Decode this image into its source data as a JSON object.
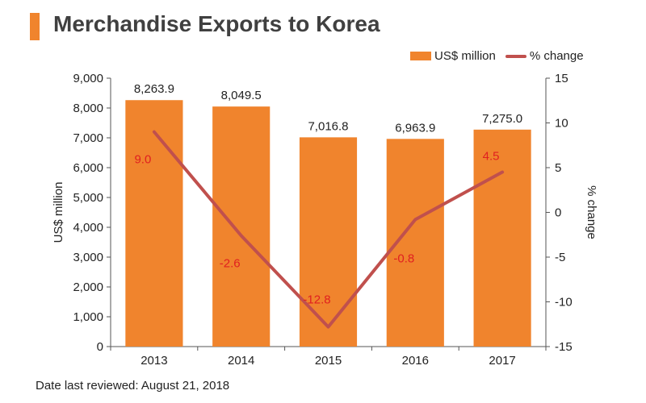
{
  "title": "Merchandise Exports to Korea",
  "footnote": "Date last reviewed: August 21, 2018",
  "legend": {
    "bar_label": "US$ million",
    "line_label": "% change"
  },
  "colors": {
    "bar": "#f0842d",
    "line": "#c0504d",
    "pct_label": "#e02020",
    "accent": "#f0842d"
  },
  "chart_data": {
    "type": "bar",
    "categories": [
      "2013",
      "2014",
      "2015",
      "2016",
      "2017"
    ],
    "series": [
      {
        "name": "US$ million",
        "type": "bar",
        "axis": "left",
        "values": [
          8263.9,
          8049.5,
          7016.8,
          6963.9,
          7275.0
        ],
        "labels": [
          "8,263.9",
          "8,049.5",
          "7,016.8",
          "6,963.9",
          "7,275.0"
        ]
      },
      {
        "name": "% change",
        "type": "line",
        "axis": "right",
        "values": [
          9.0,
          -2.6,
          -12.8,
          -0.8,
          4.5
        ],
        "labels": [
          "9.0",
          "-2.6",
          "-12.8",
          "-0.8",
          "4.5"
        ]
      }
    ],
    "ylabel_left": "US$ million",
    "ylabel_right": "% change",
    "ylim_left": [
      0,
      9000
    ],
    "ylim_right": [
      -15,
      15
    ],
    "yticks_left": [
      "0",
      "1,000",
      "2,000",
      "3,000",
      "4,000",
      "5,000",
      "6,000",
      "7,000",
      "8,000",
      "9,000"
    ],
    "yticks_right": [
      "-15",
      "-10",
      "-5",
      "0",
      "5",
      "10",
      "15"
    ],
    "grid": false,
    "legend_position": "top-right"
  }
}
